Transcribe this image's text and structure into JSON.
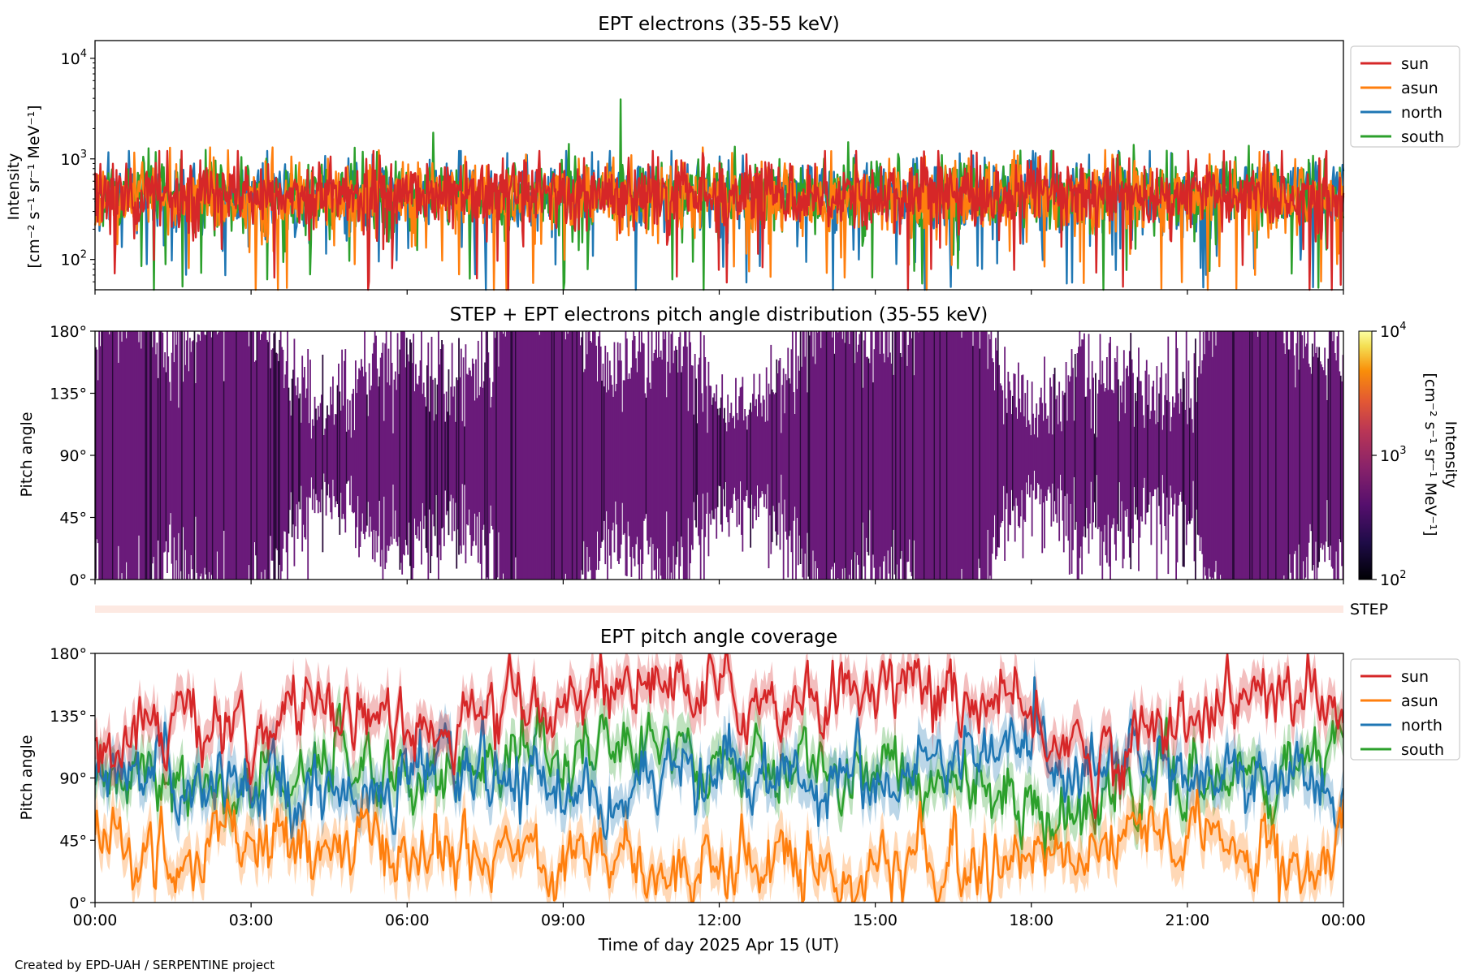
{
  "figure": {
    "credit": "Created by EPD-UAH / SERPENTINE project",
    "xlabel": "Time of day 2025 Apr 15 (UT)",
    "xticks": [
      "00:00",
      "03:00",
      "06:00",
      "09:00",
      "12:00",
      "15:00",
      "18:00",
      "21:00",
      "00:00"
    ]
  },
  "colors": {
    "sun": "#d62728",
    "asun": "#ff7f0e",
    "north": "#1f77b4",
    "south": "#2ca02c",
    "pad_fill": "#6a1b7a",
    "pad_dark": "#2a0a3a",
    "step_bar": "#fde9e2"
  },
  "chart_data": [
    {
      "type": "line",
      "title": "EPT electrons (35-55 keV)",
      "ylabel_line1": "Intensity",
      "ylabel_line2": "[cm⁻² s⁻¹ sr⁻¹ MeV⁻¹]",
      "yscale": "log",
      "ylim": [
        50,
        15000
      ],
      "ytick_labels": [
        {
          "base": "10",
          "exp": "4",
          "value": 10000
        },
        {
          "base": "10",
          "exp": "3",
          "value": 1000
        },
        {
          "base": "10",
          "exp": "2",
          "value": 100
        }
      ],
      "xlim_hours": [
        0,
        24
      ],
      "series": [
        {
          "name": "sun",
          "typical": 450,
          "range": [
            50,
            1200
          ]
        },
        {
          "name": "asun",
          "typical": 420,
          "range": [
            50,
            1300
          ]
        },
        {
          "name": "north",
          "typical": 430,
          "range": [
            50,
            1200
          ]
        },
        {
          "name": "south",
          "typical": 440,
          "range": [
            50,
            4000
          ]
        }
      ],
      "peaks": [
        {
          "series": "south",
          "x_hour": 10.1,
          "value": 3900
        }
      ],
      "legend": "outside-right"
    },
    {
      "type": "heatmap",
      "title": "STEP + EPT electrons pitch angle distribution (35-55 keV)",
      "ylabel": "Pitch angle",
      "ylim": [
        0,
        180
      ],
      "yticks": [
        "180°",
        "135°",
        "90°",
        "45°",
        "0°"
      ],
      "ytick_values": [
        180,
        135,
        90,
        45,
        0
      ],
      "colorbar": {
        "label_line1": "Intensity",
        "label_line2": "[cm⁻² s⁻¹ sr⁻¹ MeV⁻¹]",
        "scale": "log",
        "range": [
          100,
          10000
        ],
        "tick_labels": [
          {
            "base": "10",
            "exp": "4",
            "value": 10000
          },
          {
            "base": "10",
            "exp": "3",
            "value": 1000
          },
          {
            "base": "10",
            "exp": "2",
            "value": 100
          }
        ]
      },
      "step_label": "STEP"
    },
    {
      "type": "line",
      "title": "EPT pitch angle coverage",
      "ylabel": "Pitch angle",
      "ylim": [
        0,
        180
      ],
      "yticks": [
        "180°",
        "135°",
        "90°",
        "45°",
        "0°"
      ],
      "ytick_values": [
        180,
        135,
        90,
        45,
        0
      ],
      "xlim_hours": [
        0,
        24
      ],
      "series": [
        {
          "name": "sun",
          "x": [
            0,
            1.5,
            3,
            4.5,
            6,
            7.5,
            9,
            10.5,
            12,
            13.5,
            15,
            16.5,
            18,
            19.5,
            21,
            22.5,
            24
          ],
          "y": [
            120,
            140,
            115,
            150,
            130,
            125,
            150,
            160,
            150,
            145,
            160,
            150,
            130,
            100,
            140,
            150,
            140
          ]
        },
        {
          "name": "asun",
          "x": [
            0,
            1.5,
            3,
            4.5,
            6,
            7.5,
            9,
            10.5,
            12,
            13.5,
            15,
            16.5,
            18,
            19.5,
            21,
            22.5,
            24
          ],
          "y": [
            40,
            30,
            45,
            35,
            40,
            30,
            40,
            25,
            30,
            30,
            20,
            30,
            30,
            55,
            45,
            30,
            40
          ]
        },
        {
          "name": "north",
          "x": [
            0,
            1.5,
            3,
            4.5,
            6,
            7.5,
            9,
            10.5,
            12,
            13.5,
            15,
            16.5,
            18,
            19.5,
            21,
            22.5,
            24
          ],
          "y": [
            85,
            95,
            90,
            80,
            95,
            90,
            85,
            80,
            90,
            95,
            85,
            100,
            110,
            100,
            95,
            90,
            80
          ]
        },
        {
          "name": "south",
          "x": [
            0,
            1.5,
            3,
            4.5,
            6,
            7.5,
            9,
            10.5,
            12,
            13.5,
            15,
            16.5,
            18,
            19.5,
            21,
            22.5,
            24
          ],
          "y": [
            90,
            80,
            85,
            105,
            90,
            100,
            110,
            115,
            110,
            100,
            95,
            85,
            65,
            80,
            85,
            95,
            100
          ]
        }
      ],
      "legend": "outside-right"
    }
  ]
}
